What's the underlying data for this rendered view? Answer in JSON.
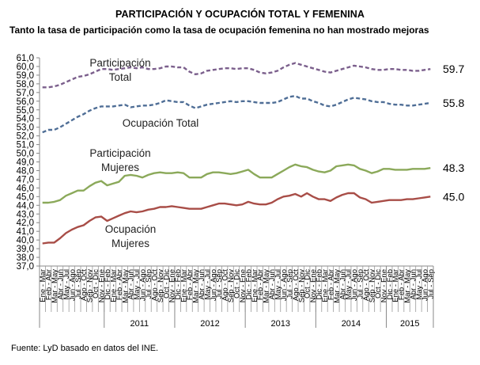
{
  "chart_data": {
    "type": "line",
    "title": "PARTICIPACIÓN Y OCUPACIÓN TOTAL Y FEMENINA",
    "subtitle": "Tanto la tasa de participación como la tasa de ocupación femenina no han mostrado mejoras",
    "xlabel": "",
    "ylabel": "",
    "ylim": [
      37.0,
      61.0
    ],
    "ytick_step": 1.0,
    "ytick_format": "comma-one-decimal",
    "grid": false,
    "legend": "inline-labels",
    "categories": [
      "Ene - Mar",
      "Feb - Abr",
      "Mar - May",
      "Abr - Jun",
      "May - Jul",
      "Jun - Ago",
      "Jul - Sep",
      "Ago - Oct",
      "Sep - Nov",
      "Oct - Dic",
      "Nov - Ene",
      "Dic - Feb",
      "Ene - Mar",
      "Feb - Abr",
      "Mar - May",
      "Abr - Jun",
      "May - Jul",
      "Jun - Ago",
      "Jul - Sep",
      "Ago - Oct",
      "Sep - Nov",
      "Oct - Dic",
      "Nov - Ene",
      "Dic - Feb",
      "Ene - Mar",
      "Feb - Abr",
      "Mar - May",
      "Abr - Jun",
      "May - Jul",
      "Jun - Ago",
      "Jul - Sep",
      "Ago - Oct",
      "Sep - Nov",
      "Oct - Dic",
      "Nov - Ene",
      "Dic - Feb",
      "Ene - Mar",
      "Feb - Abr",
      "Mar - May",
      "Abr - Jun",
      "May - Jul",
      "Jun - Ago",
      "Jul - Sep",
      "Ago - Oct",
      "Sep - Nov",
      "Oct - Dic",
      "Nov - Ene",
      "Dic - Feb",
      "Ene - Mar",
      "Feb - Abr",
      "Mar - May",
      "Abr - Jun",
      "May - Jul",
      "Jun - Ago",
      "Jul - Sep",
      "Ago - Oct",
      "Sep - Nov",
      "Oct - Dic",
      "Nov - Ene",
      "Dic - Feb",
      "Ene - Mar",
      "Feb - Abr",
      "Mar - May",
      "Abr - Jun",
      "May - Jul",
      "Jun - Ago",
      "Jul - Sep"
    ],
    "year_groups": [
      {
        "label": "",
        "count": 11
      },
      {
        "label": "2011",
        "count": 12
      },
      {
        "label": "2012",
        "count": 12
      },
      {
        "label": "2013",
        "count": 12
      },
      {
        "label": "2014",
        "count": 12
      },
      {
        "label": "2015",
        "count": 8
      }
    ],
    "series": [
      {
        "name": "Participación Total",
        "label_lines": [
          "Participación",
          "Total"
        ],
        "end_label": "59.7",
        "color": "#7B5F8C",
        "dash": true,
        "values": [
          57.6,
          57.6,
          57.7,
          57.9,
          58.2,
          58.5,
          58.8,
          58.9,
          59.1,
          59.4,
          59.7,
          59.7,
          59.6,
          59.7,
          59.8,
          59.9,
          59.8,
          59.9,
          59.7,
          59.7,
          59.8,
          60.0,
          60.0,
          59.9,
          59.9,
          59.4,
          59.1,
          59.2,
          59.5,
          59.6,
          59.7,
          59.8,
          59.8,
          59.7,
          59.8,
          59.8,
          59.6,
          59.3,
          59.2,
          59.3,
          59.5,
          59.9,
          60.2,
          60.4,
          60.2,
          60.0,
          59.8,
          59.6,
          59.4,
          59.3,
          59.5,
          59.7,
          59.9,
          60.1,
          60.0,
          59.9,
          59.7,
          59.6,
          59.6,
          59.7,
          59.7,
          59.6,
          59.6,
          59.5,
          59.5,
          59.6,
          59.7
        ]
      },
      {
        "name": "Ocupación Total",
        "label_lines": [
          "Ocupación Total"
        ],
        "end_label": "55.8",
        "color": "#4F6E96",
        "dash": true,
        "values": [
          52.4,
          52.7,
          52.7,
          53.0,
          53.4,
          53.8,
          54.2,
          54.5,
          54.9,
          55.2,
          55.4,
          55.4,
          55.4,
          55.5,
          55.6,
          55.3,
          55.4,
          55.5,
          55.5,
          55.6,
          55.8,
          56.1,
          56.0,
          55.9,
          55.9,
          55.5,
          55.2,
          55.4,
          55.6,
          55.7,
          55.8,
          55.9,
          56.0,
          55.9,
          56.0,
          56.0,
          55.9,
          55.8,
          55.8,
          55.8,
          55.9,
          56.2,
          56.5,
          56.6,
          56.3,
          56.3,
          56.0,
          55.8,
          55.5,
          55.4,
          55.6,
          55.9,
          56.2,
          56.4,
          56.3,
          56.2,
          56.0,
          55.9,
          55.9,
          55.7,
          55.6,
          55.6,
          55.5,
          55.5,
          55.6,
          55.7,
          55.8
        ]
      },
      {
        "name": "Participación Mujeres",
        "label_lines": [
          "Participación",
          "Mujeres"
        ],
        "end_label": "48.3",
        "color": "#8BA95A",
        "dash": false,
        "values": [
          44.3,
          44.3,
          44.4,
          44.6,
          45.1,
          45.4,
          45.7,
          45.7,
          46.2,
          46.6,
          46.8,
          46.3,
          46.5,
          46.7,
          47.4,
          47.5,
          47.4,
          47.2,
          47.5,
          47.7,
          47.8,
          47.7,
          47.7,
          47.8,
          47.7,
          47.2,
          47.2,
          47.2,
          47.6,
          47.8,
          47.8,
          47.7,
          47.6,
          47.7,
          47.9,
          48.1,
          47.6,
          47.2,
          47.2,
          47.2,
          47.6,
          48.0,
          48.4,
          48.7,
          48.5,
          48.4,
          48.1,
          47.9,
          47.8,
          48.0,
          48.5,
          48.6,
          48.7,
          48.6,
          48.2,
          48.0,
          47.7,
          47.9,
          48.2,
          48.2,
          48.1,
          48.1,
          48.1,
          48.2,
          48.2,
          48.2,
          48.3
        ]
      },
      {
        "name": "Ocupación Mujeres",
        "label_lines": [
          "Ocupación",
          "Mujeres"
        ],
        "end_label": "45.0",
        "color": "#A84D47",
        "dash": false,
        "values": [
          39.6,
          39.7,
          39.7,
          40.2,
          40.8,
          41.2,
          41.5,
          41.7,
          42.2,
          42.6,
          42.7,
          42.2,
          42.5,
          42.8,
          43.1,
          43.3,
          43.2,
          43.3,
          43.5,
          43.6,
          43.8,
          43.8,
          43.9,
          43.8,
          43.7,
          43.6,
          43.6,
          43.6,
          43.8,
          44.0,
          44.2,
          44.2,
          44.1,
          44.0,
          44.1,
          44.4,
          44.2,
          44.1,
          44.1,
          44.3,
          44.7,
          45.0,
          45.1,
          45.3,
          45.0,
          45.4,
          45.0,
          44.7,
          44.7,
          44.5,
          44.9,
          45.2,
          45.4,
          45.4,
          44.9,
          44.7,
          44.3,
          44.4,
          44.5,
          44.6,
          44.6,
          44.6,
          44.7,
          44.7,
          44.8,
          44.9,
          45.0
        ]
      }
    ],
    "source": "Fuente: LyD basado en datos del INE."
  }
}
